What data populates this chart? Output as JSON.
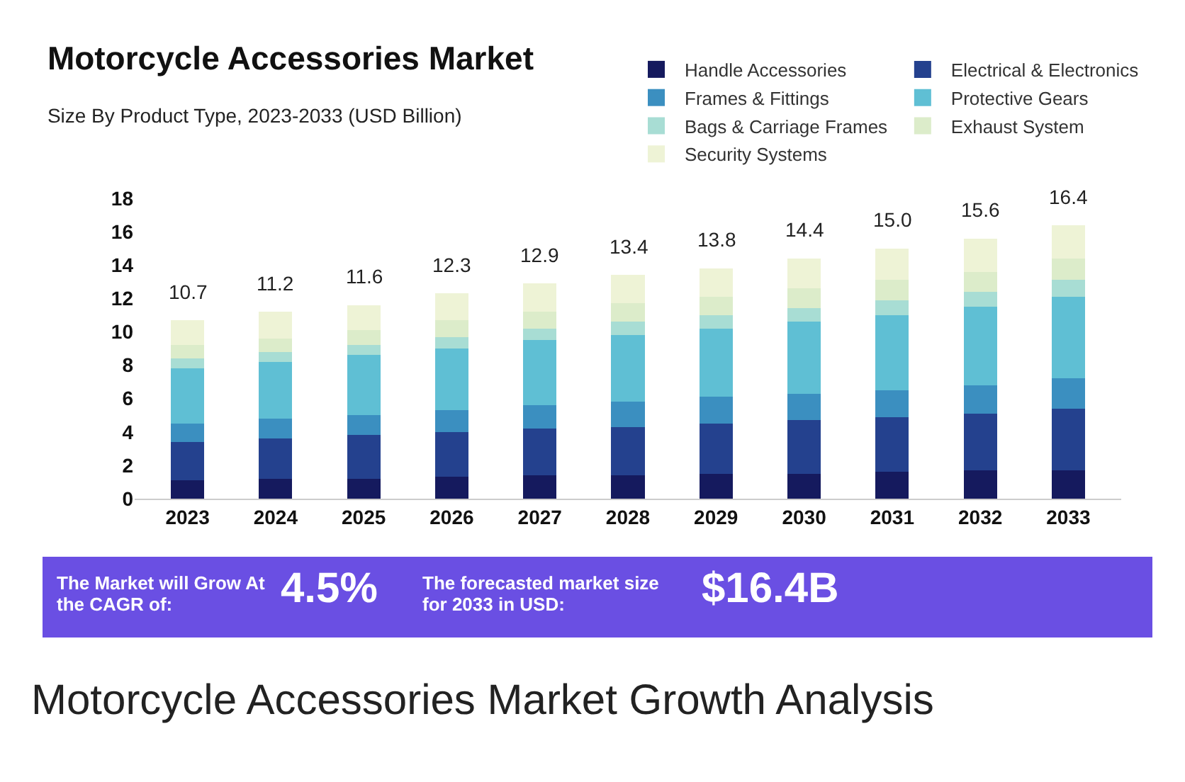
{
  "chart_data": {
    "type": "bar",
    "stacked": true,
    "title": "Motorcycle Accessories Market",
    "subtitle": "Size By Product Type, 2023-2033 (USD Billion)",
    "categories": [
      "2023",
      "2024",
      "2025",
      "2026",
      "2027",
      "2028",
      "2029",
      "2030",
      "2031",
      "2032",
      "2033"
    ],
    "series": [
      {
        "name": "Handle Accessories",
        "color": "#151a5e",
        "values": [
          1.1,
          1.2,
          1.2,
          1.3,
          1.4,
          1.4,
          1.5,
          1.5,
          1.6,
          1.7,
          1.7
        ]
      },
      {
        "name": "Electrical & Electronics",
        "color": "#24418e",
        "values": [
          2.3,
          2.4,
          2.6,
          2.7,
          2.8,
          2.9,
          3.0,
          3.2,
          3.3,
          3.4,
          3.7
        ]
      },
      {
        "name": "Frames & Fittings",
        "color": "#3b8fc0",
        "values": [
          1.1,
          1.2,
          1.2,
          1.3,
          1.4,
          1.5,
          1.6,
          1.6,
          1.6,
          1.7,
          1.8
        ]
      },
      {
        "name": "Protective Gears",
        "color": "#5fbfd4",
        "values": [
          3.3,
          3.4,
          3.6,
          3.7,
          3.9,
          4.0,
          4.1,
          4.3,
          4.5,
          4.7,
          4.9
        ]
      },
      {
        "name": "Bags & Carriage Frames",
        "color": "#a8ddd4",
        "values": [
          0.6,
          0.6,
          0.6,
          0.7,
          0.7,
          0.8,
          0.8,
          0.8,
          0.9,
          0.9,
          1.0
        ]
      },
      {
        "name": "Exhaust System",
        "color": "#dcecca",
        "values": [
          0.8,
          0.8,
          0.9,
          1.0,
          1.0,
          1.1,
          1.1,
          1.2,
          1.2,
          1.2,
          1.3
        ]
      },
      {
        "name": "Security Systems",
        "color": "#eef3d6",
        "values": [
          1.5,
          1.6,
          1.5,
          1.6,
          1.7,
          1.7,
          1.7,
          1.8,
          1.9,
          2.0,
          2.0
        ]
      }
    ],
    "totals": [
      "10.7",
      "11.2",
      "11.6",
      "12.3",
      "12.9",
      "13.4",
      "13.8",
      "14.4",
      "15.0",
      "15.6",
      "16.4"
    ],
    "ylim": [
      0,
      18
    ],
    "yticks": [
      0,
      2,
      4,
      6,
      8,
      10,
      12,
      14,
      16,
      18
    ],
    "grid": false,
    "legend": "top right",
    "annotations": [
      "The Market will Grow At the CAGR of:",
      "4.5%",
      "The forecasted market size for 2033 in USD:",
      "$16.4B",
      "Motorcycle Accessories Market Growth Analysis"
    ]
  }
}
